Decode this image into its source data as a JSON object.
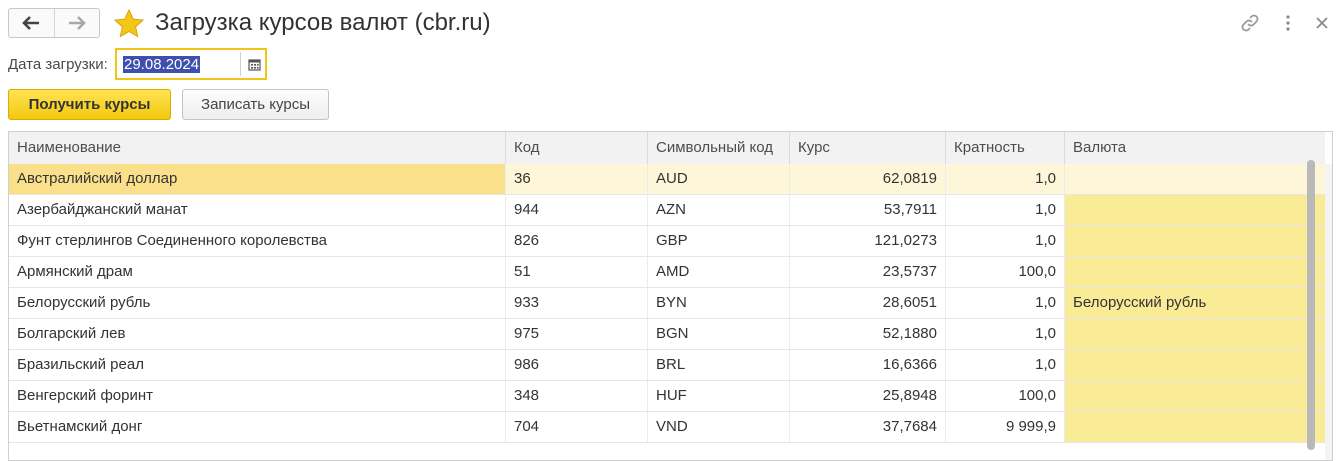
{
  "window": {
    "title": "Загрузка курсов валют (cbr.ru)"
  },
  "date": {
    "label": "Дата загрузки:",
    "value": "29.08.2024"
  },
  "buttons": {
    "get_rates": "Получить курсы",
    "save_rates": "Записать курсы"
  },
  "table": {
    "columns": [
      "Наименование",
      "Код",
      "Символьный код",
      "Курс",
      "Кратность",
      "Валюта"
    ],
    "rows": [
      {
        "name": "Австралийский доллар",
        "code": "36",
        "symbol": "AUD",
        "rate": "62,0819",
        "multiplicity": "1,0",
        "currency": ""
      },
      {
        "name": "Азербайджанский манат",
        "code": "944",
        "symbol": "AZN",
        "rate": "53,7911",
        "multiplicity": "1,0",
        "currency": ""
      },
      {
        "name": "Фунт стерлингов Соединенного королевства",
        "code": "826",
        "symbol": "GBP",
        "rate": "121,0273",
        "multiplicity": "1,0",
        "currency": ""
      },
      {
        "name": "Армянский драм",
        "code": "51",
        "symbol": "AMD",
        "rate": "23,5737",
        "multiplicity": "100,0",
        "currency": ""
      },
      {
        "name": "Белорусский рубль",
        "code": "933",
        "symbol": "BYN",
        "rate": "28,6051",
        "multiplicity": "1,0",
        "currency": "Белорусский рубль"
      },
      {
        "name": "Болгарский лев",
        "code": "975",
        "symbol": "BGN",
        "rate": "52,1880",
        "multiplicity": "1,0",
        "currency": ""
      },
      {
        "name": "Бразильский реал",
        "code": "986",
        "symbol": "BRL",
        "rate": "16,6366",
        "multiplicity": "1,0",
        "currency": ""
      },
      {
        "name": "Венгерский форинт",
        "code": "348",
        "symbol": "HUF",
        "rate": "25,8948",
        "multiplicity": "100,0",
        "currency": ""
      },
      {
        "name": "Вьетнамский донг",
        "code": "704",
        "symbol": "VND",
        "rate": "37,7684",
        "multiplicity": "9 999,9",
        "currency": ""
      }
    ]
  },
  "icons": {
    "back": "arrow-left-icon",
    "forward": "arrow-right-icon",
    "favorite": "star-icon",
    "link": "link-icon",
    "more": "more-vertical-icon",
    "close": "close-icon",
    "calendar": "calendar-icon"
  },
  "colors": {
    "accent_yellow": "#f3c80c",
    "selection_blue": "#3f4fae",
    "valuta_column": "#faeb96",
    "selected_row": "#fdf6d9"
  }
}
